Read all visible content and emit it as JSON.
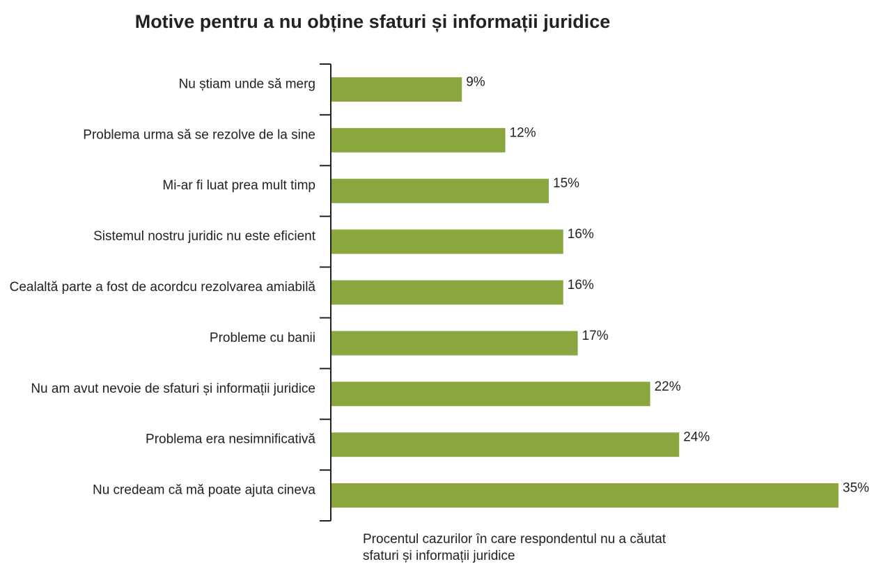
{
  "chart_data": {
    "type": "bar",
    "orientation": "horizontal",
    "title": "Motive pentru a nu obține sfaturi și informații juridice",
    "xlabel": [
      "Procentul cazurilor în care respondentul nu a căutat",
      "sfaturi și informații juridice"
    ],
    "ylabel": "",
    "categories": [
      "Nu știam unde să merg",
      "Problema urma să se rezolve de la sine",
      "Mi-ar fi luat prea mult timp",
      "Sistemul nostru juridic nu este eficient",
      "Cealaltă parte a fost de acordcu rezolvarea amiabilă",
      "Probleme cu banii",
      "Nu am avut nevoie de sfaturi și informații juridice",
      "Problema era nesimnificativă",
      "Nu credeam că mă poate ajuta cineva"
    ],
    "values": [
      9,
      12,
      15,
      16,
      16,
      17,
      22,
      24,
      35
    ],
    "value_labels": [
      "9%",
      "12%",
      "15%",
      "16%",
      "16%",
      "17%",
      "22%",
      "24%",
      "35%"
    ],
    "xlim": [
      0,
      35
    ],
    "grid": false,
    "legend": "none",
    "bar_color": "#8aa63e",
    "axis_color": "#222222"
  }
}
